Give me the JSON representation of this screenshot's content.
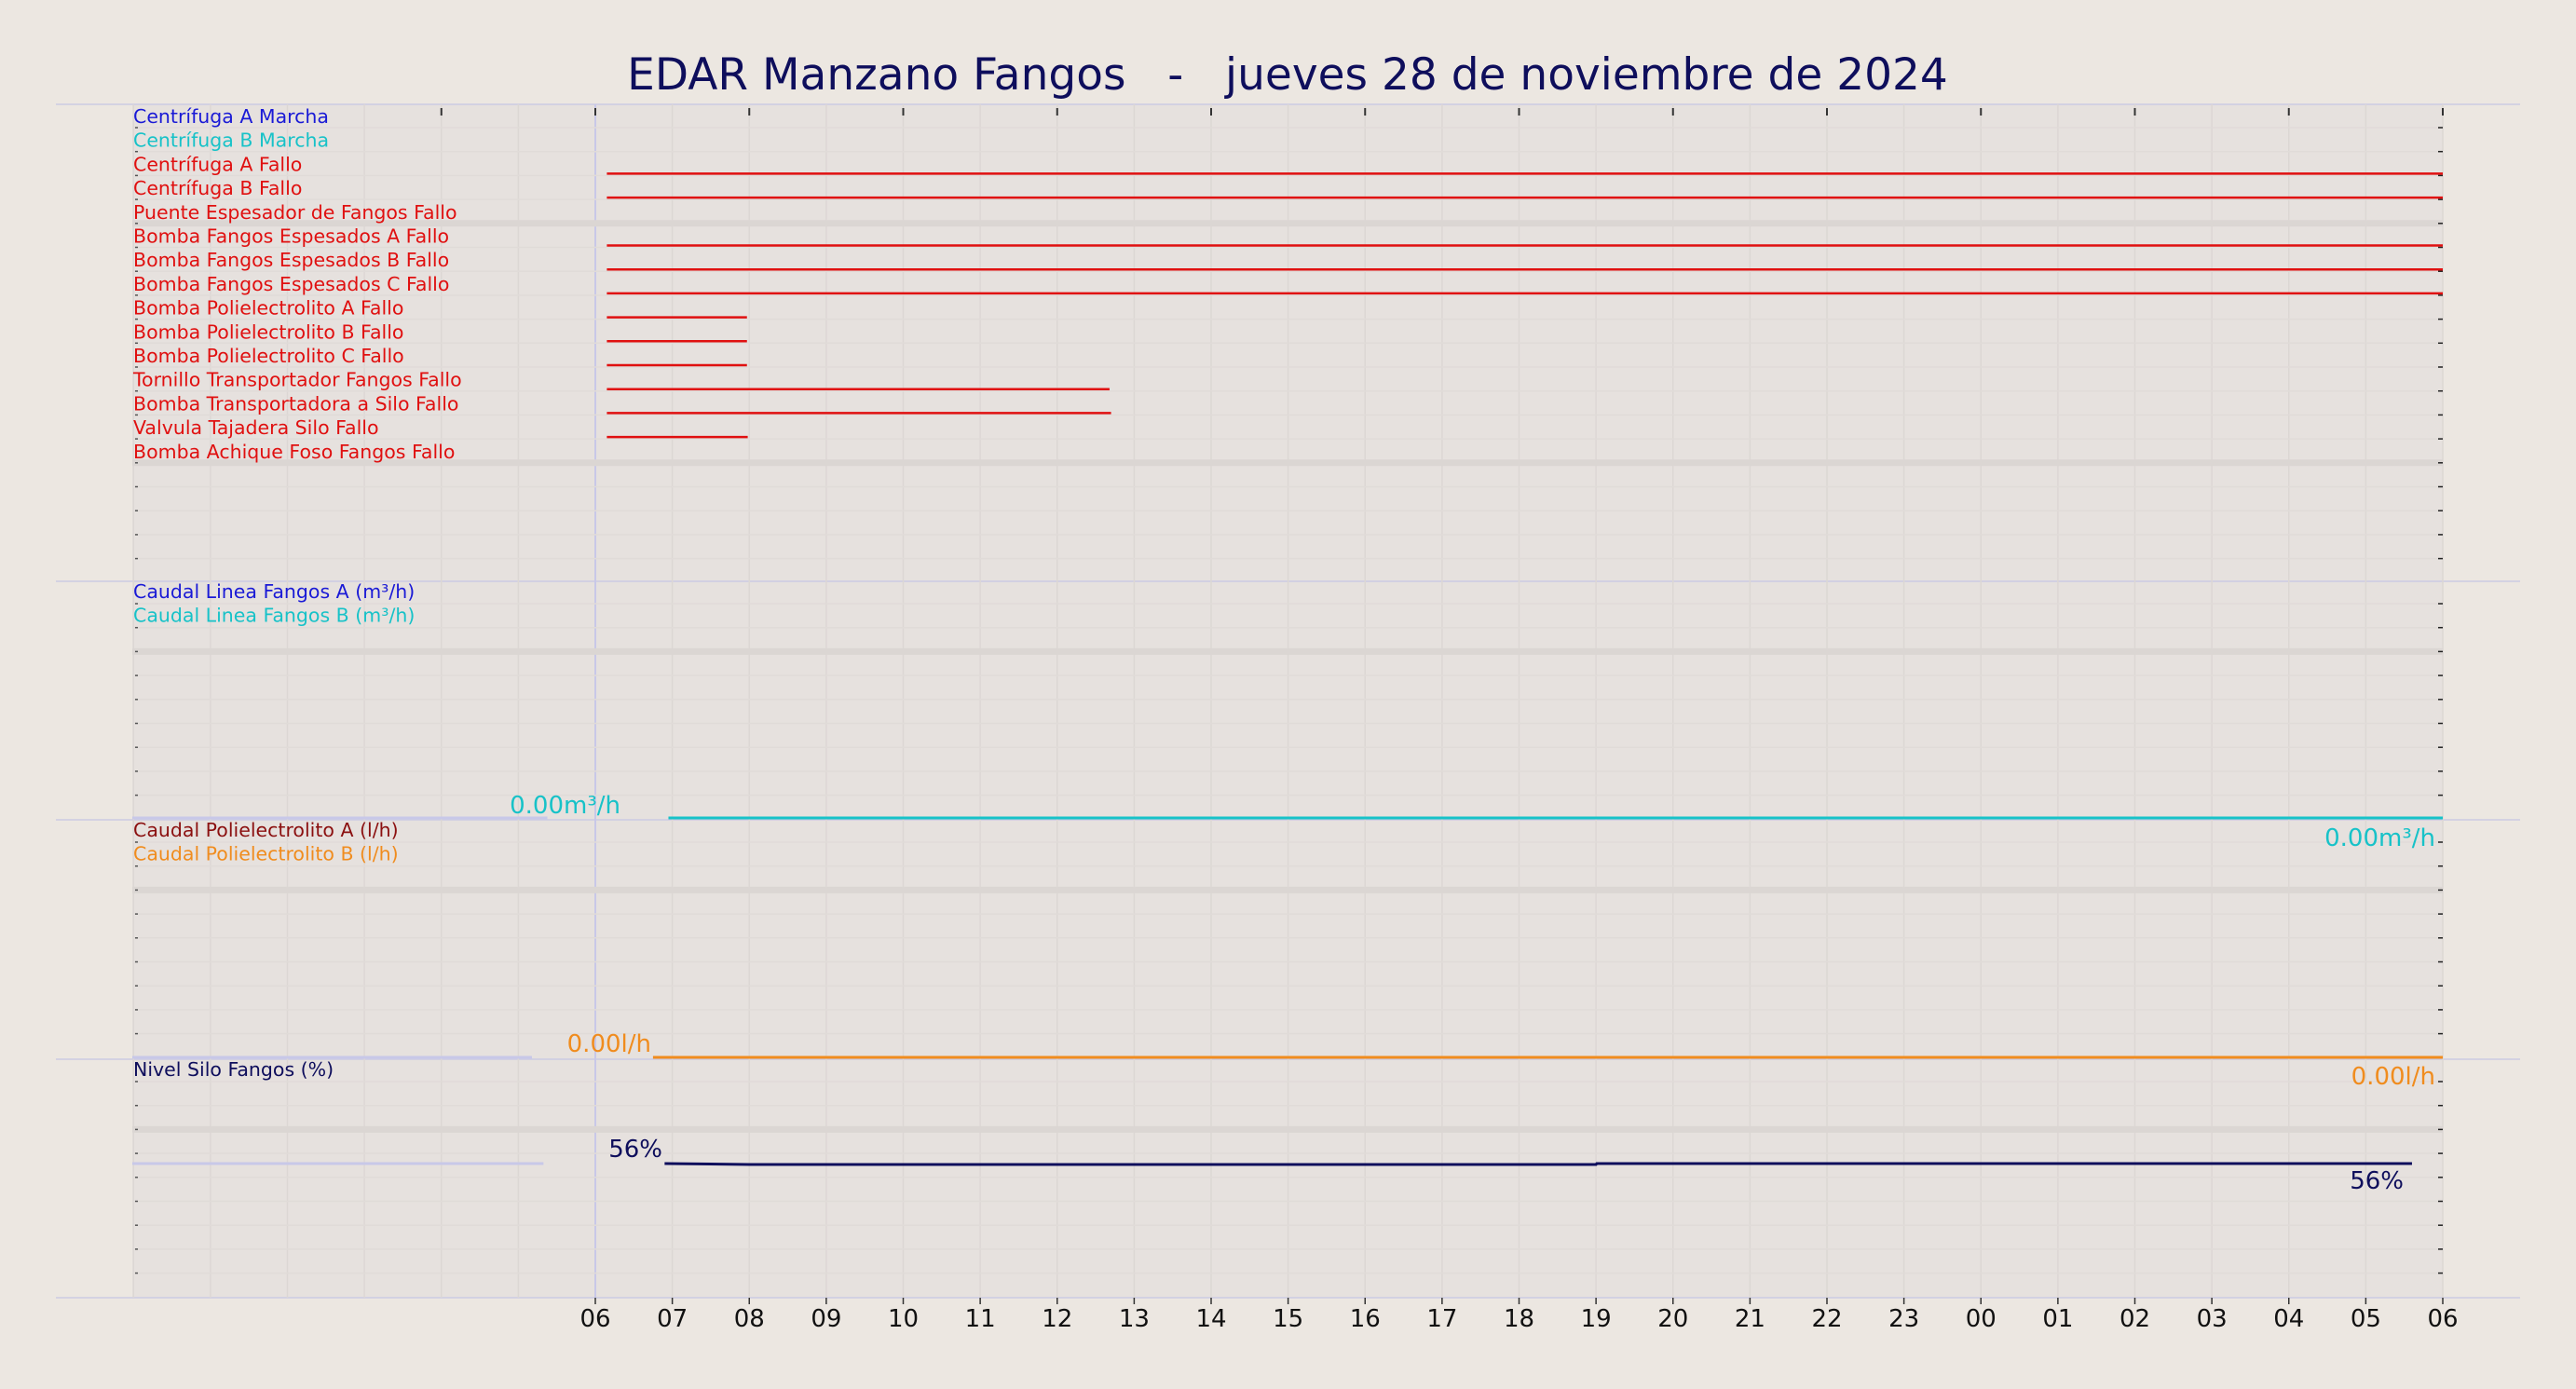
{
  "chart_data": {
    "type": "line",
    "title": "EDAR Manzano Fangos   -   jueves 28 de noviembre de 2024",
    "x_tick_labels": [
      "06",
      "07",
      "08",
      "09",
      "10",
      "11",
      "12",
      "13",
      "14",
      "15",
      "16",
      "17",
      "18",
      "19",
      "20",
      "21",
      "22",
      "23",
      "00",
      "01",
      "02",
      "03",
      "04",
      "05",
      "06"
    ],
    "x_range_hours": [
      0,
      24
    ],
    "grid": true,
    "panels": [
      {
        "name": "alarmas",
        "kind": "digital",
        "series": [
          {
            "name": "Centrífuga A Marcha",
            "color": "#1a1ad6",
            "segments": []
          },
          {
            "name": "Centrífuga B Marcha",
            "color": "#17c2c8",
            "segments": []
          },
          {
            "name": "Centrífuga A Fallo",
            "color": "#e01010",
            "segments": [
              [
                0.15,
                24
              ]
            ]
          },
          {
            "name": "Centrífuga B Fallo",
            "color": "#e01010",
            "segments": [
              [
                0.15,
                24
              ]
            ]
          },
          {
            "name": "Puente Espesador de Fangos Fallo",
            "color": "#e01010",
            "segments": []
          },
          {
            "name": "Bomba Fangos Espesados A Fallo",
            "color": "#e01010",
            "segments": [
              [
                0.15,
                24
              ]
            ]
          },
          {
            "name": "Bomba Fangos Espesados B Fallo",
            "color": "#e01010",
            "segments": [
              [
                0.15,
                24
              ]
            ]
          },
          {
            "name": "Bomba Fangos Espesados C Fallo",
            "color": "#e01010",
            "segments": [
              [
                0.15,
                24
              ]
            ]
          },
          {
            "name": "Bomba Polielectrolito A Fallo",
            "color": "#e01010",
            "segments": [
              [
                0.15,
                1.97
              ]
            ]
          },
          {
            "name": "Bomba Polielectrolito B Fallo",
            "color": "#e01010",
            "segments": [
              [
                0.15,
                1.97
              ]
            ]
          },
          {
            "name": "Bomba Polielectrolito C Fallo",
            "color": "#e01010",
            "segments": [
              [
                0.15,
                1.97
              ]
            ]
          },
          {
            "name": "Tornillo Transportador Fangos Fallo",
            "color": "#e01010",
            "segments": [
              [
                0.15,
                6.68
              ]
            ]
          },
          {
            "name": "Bomba Transportadora a Silo Fallo",
            "color": "#e01010",
            "segments": [
              [
                0.15,
                6.7
              ]
            ]
          },
          {
            "name": "Valvula Tajadera Silo Fallo",
            "color": "#e01010",
            "segments": [
              [
                0.15,
                1.98
              ]
            ]
          },
          {
            "name": "Bomba Achique Foso Fangos Fallo",
            "color": "#e01010",
            "segments": []
          }
        ]
      },
      {
        "name": "caudal-fangos",
        "kind": "analog",
        "series": [
          {
            "name": "Caudal Linea Fangos A (m³/h)",
            "color": "#1a1ad6",
            "points": [
              [
                0.95,
                0
              ],
              [
                24,
                0
              ]
            ]
          },
          {
            "name": "Caudal Linea Fangos B (m³/h)",
            "color": "#17c2c8",
            "points": [
              [
                0.95,
                0
              ],
              [
                24,
                0
              ]
            ]
          }
        ],
        "start_label": "0.00m³/h",
        "end_label": "0.00m³/h",
        "label_color": "#17c2c8"
      },
      {
        "name": "caudal-polielectrolito",
        "kind": "analog",
        "series": [
          {
            "name": "Caudal Polielectrolito A (l/h)",
            "color": "#8b1010",
            "points": [
              [
                0.75,
                0
              ],
              [
                24,
                0
              ]
            ]
          },
          {
            "name": "Caudal Polielectrolito B (l/h)",
            "color": "#f08c1e",
            "points": [
              [
                0.75,
                0
              ],
              [
                24,
                0
              ]
            ]
          }
        ],
        "start_label": "0.00l/h",
        "end_label": "0.00l/h",
        "label_color": "#f08c1e"
      },
      {
        "name": "nivel-silo",
        "kind": "analog",
        "ylim": [
          0,
          100
        ],
        "series": [
          {
            "name": "Nivel Silo Fangos (%)",
            "color": "#0e0e5c",
            "points": [
              [
                0.9,
                56.5
              ],
              [
                2.0,
                56.0
              ],
              [
                13.0,
                56.0
              ],
              [
                13.01,
                56.5
              ],
              [
                23.6,
                56.5
              ]
            ]
          }
        ],
        "start_label": "56%",
        "end_label": "56%",
        "label_color": "#0e0e5c"
      }
    ]
  }
}
